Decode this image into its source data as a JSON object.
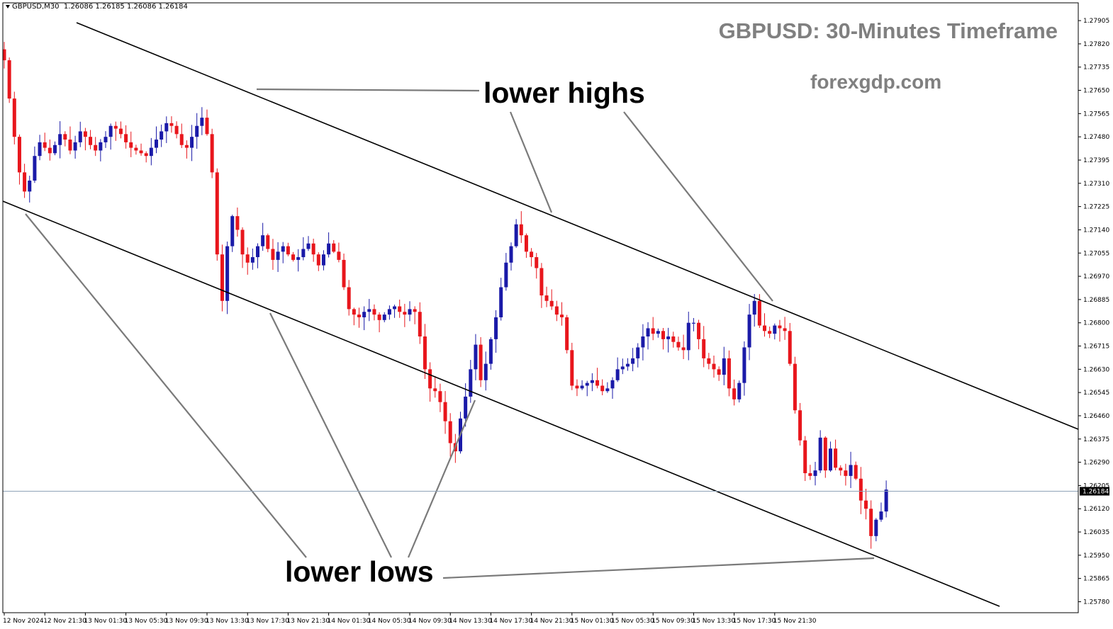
{
  "header": {
    "symbol": "GBPUSD,M30",
    "ohlc": "1.26086 1.26185 1.26086 1.26184"
  },
  "title": "GBPUSD: 30-Minutes Timeframe",
  "watermark": "forexgdp.com",
  "annotations": {
    "lower_highs": "lower highs",
    "lower_lows": "lower lows"
  },
  "colors": {
    "bull": "#1a1aa8",
    "bear": "#e8161c",
    "channel": "#000000",
    "pointer": "#7a7a7a",
    "current_price_line": "#8fa3b8",
    "price_tag_bg": "#000000"
  },
  "chart_data": {
    "type": "candlestick",
    "symbol": "GBPUSD",
    "timeframe": "M30",
    "current_price": 1.26184,
    "current_price_label": "1.26184",
    "ylim": [
      1.25745,
      1.2797
    ],
    "y_ticks": [
      "1.27905",
      "1.27820",
      "1.27735",
      "1.27650",
      "1.27565",
      "1.27480",
      "1.27395",
      "1.27310",
      "1.27225",
      "1.27140",
      "1.27055",
      "1.26970",
      "1.26885",
      "1.26800",
      "1.26715",
      "1.26630",
      "1.26545",
      "1.26460",
      "1.26375",
      "1.26290",
      "1.26205",
      "1.26120",
      "1.26035",
      "1.25950",
      "1.25865",
      "1.25780"
    ],
    "x_tick_labels": [
      "12 Nov 2024",
      "12 Nov 21:30",
      "13 Nov 01:30",
      "13 Nov 05:30",
      "13 Nov 09:30",
      "13 Nov 13:30",
      "13 Nov 17:30",
      "13 Nov 21:30",
      "14 Nov 01:30",
      "14 Nov 05:30",
      "14 Nov 09:30",
      "14 Nov 13:30",
      "14 Nov 17:30",
      "14 Nov 21:30",
      "15 Nov 01:30",
      "15 Nov 05:30",
      "15 Nov 09:30",
      "15 Nov 13:30",
      "15 Nov 17:30",
      "15 Nov 21:30"
    ],
    "close_path": [
      1.2776,
      1.2762,
      1.2748,
      1.2735,
      1.2728,
      1.2732,
      1.2741,
      1.2746,
      1.2744,
      1.2742,
      1.2745,
      1.2749,
      1.2747,
      1.2743,
      1.2746,
      1.275,
      1.2748,
      1.2745,
      1.2743,
      1.2746,
      1.2748,
      1.2752,
      1.2751,
      1.2749,
      1.2746,
      1.2744,
      1.2743,
      1.2742,
      1.2741,
      1.2744,
      1.2747,
      1.275,
      1.2753,
      1.2752,
      1.2749,
      1.2745,
      1.2744,
      1.2748,
      1.2752,
      1.2755,
      1.2749,
      1.2735,
      1.2705,
      1.2688,
      1.2708,
      1.2719,
      1.2714,
      1.2705,
      1.2702,
      1.2704,
      1.2708,
      1.2712,
      1.2707,
      1.2703,
      1.2706,
      1.2708,
      1.2705,
      1.2703,
      1.2704,
      1.2707,
      1.2709,
      1.2705,
      1.2701,
      1.2705,
      1.2709,
      1.2706,
      1.2703,
      1.2693,
      1.2685,
      1.2683,
      1.2682,
      1.2684,
      1.2685,
      1.2683,
      1.2681,
      1.2683,
      1.2685,
      1.2686,
      1.2684,
      1.2683,
      1.2685,
      1.2684,
      1.2675,
      1.2663,
      1.2656,
      1.2655,
      1.2651,
      1.2644,
      1.2636,
      1.2633,
      1.2645,
      1.2653,
      1.2663,
      1.2672,
      1.2659,
      1.2665,
      1.2674,
      1.2682,
      1.2693,
      1.2702,
      1.2708,
      1.2716,
      1.2712,
      1.2706,
      1.2704,
      1.27,
      1.269,
      1.2688,
      1.2686,
      1.2683,
      1.2682,
      1.267,
      1.2657,
      1.2656,
      1.2657,
      1.2658,
      1.2659,
      1.2657,
      1.2655,
      1.2656,
      1.2659,
      1.2663,
      1.2664,
      1.2665,
      1.2667,
      1.2671,
      1.2675,
      1.2678,
      1.2676,
      1.2677,
      1.2674,
      1.2675,
      1.2673,
      1.2671,
      1.267,
      1.268,
      1.268,
      1.2674,
      1.2667,
      1.2665,
      1.2663,
      1.2661,
      1.2667,
      1.2656,
      1.2652,
      1.2658,
      1.2671,
      1.2683,
      1.2688,
      1.2679,
      1.2677,
      1.2676,
      1.2679,
      1.2678,
      1.2677,
      1.2665,
      1.2648,
      1.2637,
      1.2625,
      1.2624,
      1.2626,
      1.2638,
      1.2626,
      1.2634,
      1.2627,
      1.2626,
      1.2624,
      1.2628,
      1.2623,
      1.2615,
      1.2612,
      1.2602,
      1.2608,
      1.2611,
      1.2619
    ]
  }
}
